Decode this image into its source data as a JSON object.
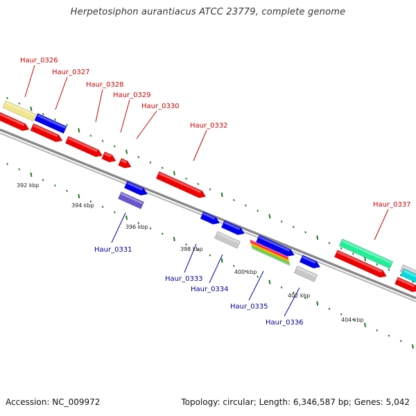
{
  "title": "Herpetosiphon aurantiacus ATCC 23779, complete genome",
  "footer": {
    "accession": "Accession: NC_009972",
    "summary": "Topology: circular; Length: 6,346,587 bp; Genes: 5,042"
  },
  "colors": {
    "top_label": "#cc0000",
    "bottom_label": "#000099",
    "backbone": "#888888",
    "tick": "#1a7a1a"
  },
  "kbp_labels": [
    "392 kbp",
    "394 kbp",
    "396 kbp",
    "398 kbp",
    "400 kbp",
    "402 kbp",
    "404 kbp"
  ],
  "top_gene_labels": [
    "Haur_0326",
    "Haur_0327",
    "Haur_0328",
    "Haur_0329",
    "Haur_0330",
    "Haur_0332",
    "Haur_0337"
  ],
  "bottom_gene_labels": [
    "Haur_0331",
    "Haur_0333",
    "Haur_0334",
    "Haur_0335",
    "Haur_0336"
  ]
}
